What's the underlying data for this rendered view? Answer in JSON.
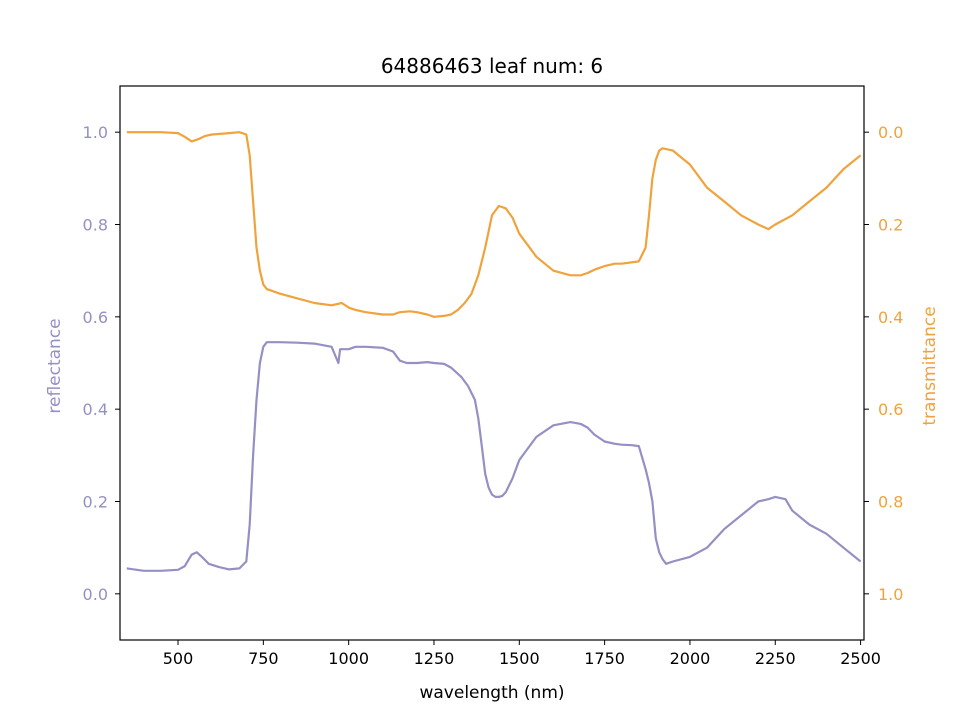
{
  "chart_data": {
    "type": "line",
    "title": "64886463 leaf num: 6",
    "xlabel": "wavelength (nm)",
    "ylabel_left": "reflectance",
    "ylabel_right": "transmittance",
    "xlim": [
      330,
      2510
    ],
    "ylim_left": [
      -0.1,
      1.1
    ],
    "ylim_right": [
      1.1,
      -0.1
    ],
    "right_axis_inverted": true,
    "x_ticks": [
      500,
      750,
      1000,
      1250,
      1500,
      1750,
      2000,
      2250,
      2500
    ],
    "x_tick_labels": [
      "500",
      "750",
      "1000",
      "1250",
      "1500",
      "1750",
      "2000",
      "2250",
      "2500"
    ],
    "y_left_ticks": [
      0.0,
      0.2,
      0.4,
      0.6,
      0.8,
      1.0
    ],
    "y_left_tick_labels": [
      "0.0",
      "0.2",
      "0.4",
      "0.6",
      "0.8",
      "1.0"
    ],
    "y_right_ticks": [
      0.0,
      0.2,
      0.4,
      0.6,
      0.8,
      1.0
    ],
    "y_right_tick_labels": [
      "0.0",
      "0.2",
      "0.4",
      "0.6",
      "0.8",
      "1.0"
    ],
    "grid": false,
    "legend": "none",
    "colors": {
      "reflectance": "#9590c4",
      "transmittance": "#f0a33c",
      "axes": "#000000"
    },
    "series": [
      {
        "axis": "left",
        "x": [
          350,
          400,
          450,
          500,
          520,
          540,
          555,
          570,
          590,
          620,
          650,
          680,
          700,
          710,
          720,
          730,
          740,
          750,
          760,
          770,
          780,
          800,
          850,
          900,
          950,
          970,
          975,
          1000,
          1020,
          1050,
          1100,
          1130,
          1150,
          1170,
          1200,
          1230,
          1250,
          1280,
          1300,
          1330,
          1350,
          1370,
          1380,
          1390,
          1400,
          1410,
          1420,
          1430,
          1440,
          1450,
          1460,
          1480,
          1500,
          1550,
          1600,
          1650,
          1680,
          1700,
          1720,
          1750,
          1780,
          1800,
          1830,
          1850,
          1870,
          1880,
          1890,
          1900,
          1910,
          1920,
          1930,
          1950,
          2000,
          2050,
          2100,
          2150,
          2200,
          2230,
          2250,
          2280,
          2300,
          2350,
          2400,
          2450,
          2500
        ],
        "y": [
          0.055,
          0.05,
          0.05,
          0.052,
          0.06,
          0.085,
          0.09,
          0.08,
          0.065,
          0.058,
          0.053,
          0.055,
          0.07,
          0.15,
          0.3,
          0.42,
          0.5,
          0.535,
          0.545,
          0.545,
          0.545,
          0.545,
          0.544,
          0.542,
          0.535,
          0.5,
          0.53,
          0.53,
          0.535,
          0.535,
          0.533,
          0.525,
          0.505,
          0.5,
          0.5,
          0.502,
          0.5,
          0.498,
          0.49,
          0.47,
          0.45,
          0.42,
          0.38,
          0.32,
          0.26,
          0.23,
          0.215,
          0.21,
          0.21,
          0.212,
          0.22,
          0.25,
          0.29,
          0.34,
          0.365,
          0.372,
          0.368,
          0.36,
          0.345,
          0.33,
          0.325,
          0.323,
          0.322,
          0.32,
          0.27,
          0.24,
          0.2,
          0.12,
          0.09,
          0.075,
          0.065,
          0.07,
          0.08,
          0.1,
          0.14,
          0.17,
          0.2,
          0.205,
          0.21,
          0.205,
          0.18,
          0.15,
          0.13,
          0.1,
          0.07
        ]
      },
      {
        "axis": "right",
        "x": [
          350,
          400,
          450,
          500,
          520,
          540,
          560,
          580,
          600,
          650,
          680,
          700,
          710,
          720,
          730,
          740,
          750,
          760,
          780,
          800,
          850,
          900,
          950,
          980,
          1000,
          1020,
          1050,
          1100,
          1130,
          1150,
          1180,
          1200,
          1230,
          1250,
          1280,
          1300,
          1320,
          1340,
          1360,
          1380,
          1400,
          1420,
          1440,
          1460,
          1480,
          1500,
          1550,
          1600,
          1650,
          1680,
          1700,
          1720,
          1750,
          1780,
          1800,
          1850,
          1870,
          1880,
          1890,
          1900,
          1910,
          1920,
          1950,
          2000,
          2050,
          2100,
          2150,
          2200,
          2230,
          2250,
          2300,
          2350,
          2400,
          2450,
          2500
        ],
        "y": [
          0.0,
          0.0,
          0.0,
          0.002,
          0.01,
          0.02,
          0.015,
          0.008,
          0.005,
          0.002,
          0.0,
          0.005,
          0.05,
          0.15,
          0.25,
          0.3,
          0.33,
          0.34,
          0.345,
          0.35,
          0.36,
          0.37,
          0.375,
          0.37,
          0.38,
          0.385,
          0.39,
          0.395,
          0.395,
          0.39,
          0.388,
          0.39,
          0.395,
          0.4,
          0.398,
          0.395,
          0.385,
          0.37,
          0.35,
          0.31,
          0.25,
          0.18,
          0.16,
          0.165,
          0.185,
          0.22,
          0.27,
          0.3,
          0.31,
          0.31,
          0.305,
          0.298,
          0.29,
          0.285,
          0.285,
          0.28,
          0.25,
          0.18,
          0.1,
          0.06,
          0.04,
          0.035,
          0.04,
          0.07,
          0.12,
          0.15,
          0.18,
          0.2,
          0.21,
          0.2,
          0.18,
          0.15,
          0.12,
          0.08,
          0.05
        ]
      }
    ]
  }
}
